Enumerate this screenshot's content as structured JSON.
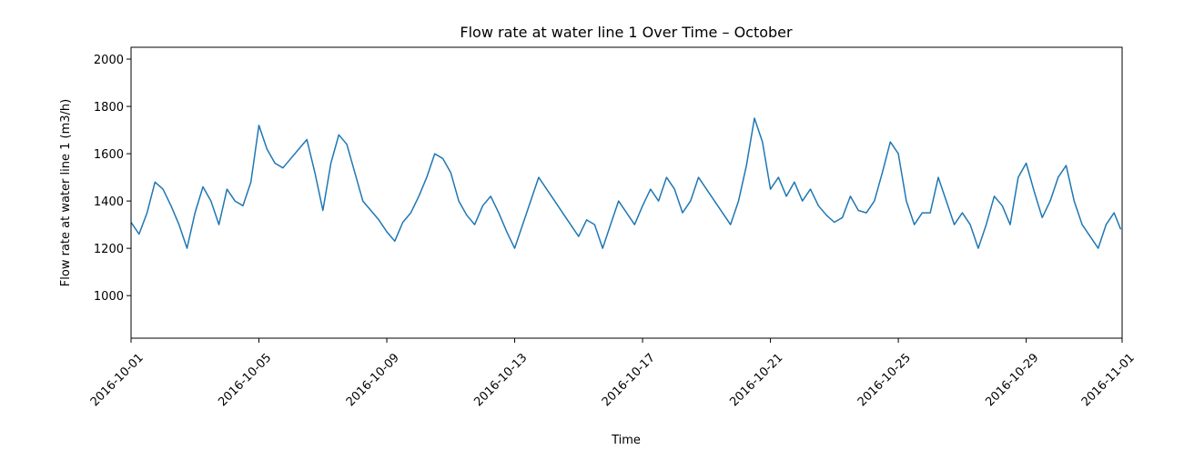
{
  "chart_data": {
    "type": "line",
    "title": "Flow rate at water line 1 Over Time – October",
    "xlabel": "Time",
    "ylabel": "Flow rate at water line 1 (m3/h)",
    "xlim": [
      "2016-10-01",
      "2016-11-01"
    ],
    "ylim": [
      820,
      2050
    ],
    "x_ticks": [
      "2016-10-01",
      "2016-10-05",
      "2016-10-09",
      "2016-10-13",
      "2016-10-17",
      "2016-10-21",
      "2016-10-25",
      "2016-10-29",
      "2016-11-01"
    ],
    "y_ticks": [
      "1000",
      "1200",
      "1400",
      "1600",
      "1800",
      "2000"
    ],
    "grid": false,
    "legend": "none",
    "series": [
      {
        "color": "#1f77b4",
        "x": [
          "2016-10-01 00:00",
          "2016-10-01 06:00",
          "2016-10-01 12:00",
          "2016-10-01 18:00",
          "2016-10-02 00:00",
          "2016-10-02 06:00",
          "2016-10-02 12:00",
          "2016-10-02 18:00",
          "2016-10-03 00:00",
          "2016-10-03 06:00",
          "2016-10-03 12:00",
          "2016-10-03 18:00",
          "2016-10-04 00:00",
          "2016-10-04 06:00",
          "2016-10-04 12:00",
          "2016-10-04 18:00",
          "2016-10-05 00:00",
          "2016-10-05 06:00",
          "2016-10-05 12:00",
          "2016-10-05 18:00",
          "2016-10-06 00:00",
          "2016-10-06 06:00",
          "2016-10-06 12:00",
          "2016-10-06 18:00",
          "2016-10-07 00:00",
          "2016-10-07 06:00",
          "2016-10-07 12:00",
          "2016-10-07 18:00",
          "2016-10-08 00:00",
          "2016-10-08 06:00",
          "2016-10-08 12:00",
          "2016-10-08 18:00",
          "2016-10-09 00:00",
          "2016-10-09 06:00",
          "2016-10-09 12:00",
          "2016-10-09 18:00",
          "2016-10-10 00:00",
          "2016-10-10 06:00",
          "2016-10-10 12:00",
          "2016-10-10 18:00",
          "2016-10-11 00:00",
          "2016-10-11 06:00",
          "2016-10-11 12:00",
          "2016-10-11 18:00",
          "2016-10-12 00:00",
          "2016-10-12 06:00",
          "2016-10-12 12:00",
          "2016-10-12 18:00",
          "2016-10-13 00:00",
          "2016-10-13 06:00",
          "2016-10-13 12:00",
          "2016-10-13 18:00",
          "2016-10-14 00:00",
          "2016-10-14 06:00",
          "2016-10-14 12:00",
          "2016-10-14 18:00",
          "2016-10-15 00:00",
          "2016-10-15 06:00",
          "2016-10-15 12:00",
          "2016-10-15 18:00",
          "2016-10-16 00:00",
          "2016-10-16 06:00",
          "2016-10-16 12:00",
          "2016-10-16 18:00",
          "2016-10-17 00:00",
          "2016-10-17 06:00",
          "2016-10-17 12:00",
          "2016-10-17 18:00",
          "2016-10-18 00:00",
          "2016-10-18 06:00",
          "2016-10-18 12:00",
          "2016-10-18 18:00",
          "2016-10-19 00:00",
          "2016-10-19 06:00",
          "2016-10-19 12:00",
          "2016-10-19 18:00",
          "2016-10-20 00:00",
          "2016-10-20 06:00",
          "2016-10-20 12:00",
          "2016-10-20 18:00",
          "2016-10-21 00:00",
          "2016-10-21 06:00",
          "2016-10-21 12:00",
          "2016-10-21 18:00",
          "2016-10-22 00:00",
          "2016-10-22 06:00",
          "2016-10-22 12:00",
          "2016-10-22 18:00",
          "2016-10-23 00:00",
          "2016-10-23 06:00",
          "2016-10-23 12:00",
          "2016-10-23 18:00",
          "2016-10-24 00:00",
          "2016-10-24 06:00",
          "2016-10-24 12:00",
          "2016-10-24 18:00",
          "2016-10-25 00:00",
          "2016-10-25 06:00",
          "2016-10-25 12:00",
          "2016-10-25 18:00",
          "2016-10-26 00:00",
          "2016-10-26 06:00",
          "2016-10-26 12:00",
          "2016-10-26 18:00",
          "2016-10-27 00:00",
          "2016-10-27 06:00",
          "2016-10-27 12:00",
          "2016-10-27 18:00",
          "2016-10-28 00:00",
          "2016-10-28 06:00",
          "2016-10-28 12:00",
          "2016-10-28 18:00",
          "2016-10-29 00:00",
          "2016-10-29 06:00",
          "2016-10-29 12:00",
          "2016-10-29 18:00",
          "2016-10-30 00:00",
          "2016-10-30 06:00",
          "2016-10-30 12:00",
          "2016-10-30 18:00",
          "2016-10-31 00:00",
          "2016-10-31 06:00",
          "2016-10-31 12:00",
          "2016-10-31 18:00",
          "2016-10-31 23:00"
        ],
        "values": [
          1310,
          1260,
          1350,
          1480,
          1450,
          1380,
          1300,
          1200,
          1350,
          1460,
          1400,
          1300,
          1450,
          1400,
          1380,
          1480,
          1720,
          1620,
          1560,
          1540,
          1580,
          1620,
          1660,
          1520,
          1360,
          1560,
          1680,
          1640,
          1520,
          1400,
          1360,
          1320,
          1270,
          1230,
          1310,
          1350,
          1420,
          1500,
          1600,
          1580,
          1520,
          1400,
          1340,
          1300,
          1380,
          1420,
          1350,
          1270,
          1200,
          1300,
          1400,
          1500,
          1450,
          1400,
          1350,
          1300,
          1250,
          1320,
          1300,
          1200,
          1300,
          1400,
          1350,
          1300,
          1380,
          1450,
          1400,
          1500,
          1450,
          1350,
          1400,
          1500,
          1450,
          1400,
          1350,
          1300,
          1400,
          1550,
          1750,
          1650,
          1450,
          1500,
          1420,
          1480,
          1400,
          1450,
          1380,
          1340,
          1310,
          1330,
          1420,
          1360,
          1350,
          1400,
          1520,
          1650,
          1600,
          1400,
          1300,
          1350,
          1350,
          1500,
          1400,
          1300,
          1350,
          1300,
          1200,
          1300,
          1420,
          1380,
          1300,
          1500,
          1560,
          1440,
          1330,
          1400,
          1500,
          1550,
          1400,
          1300,
          1250,
          1200,
          1300,
          1350,
          1280
        ]
      }
    ]
  }
}
